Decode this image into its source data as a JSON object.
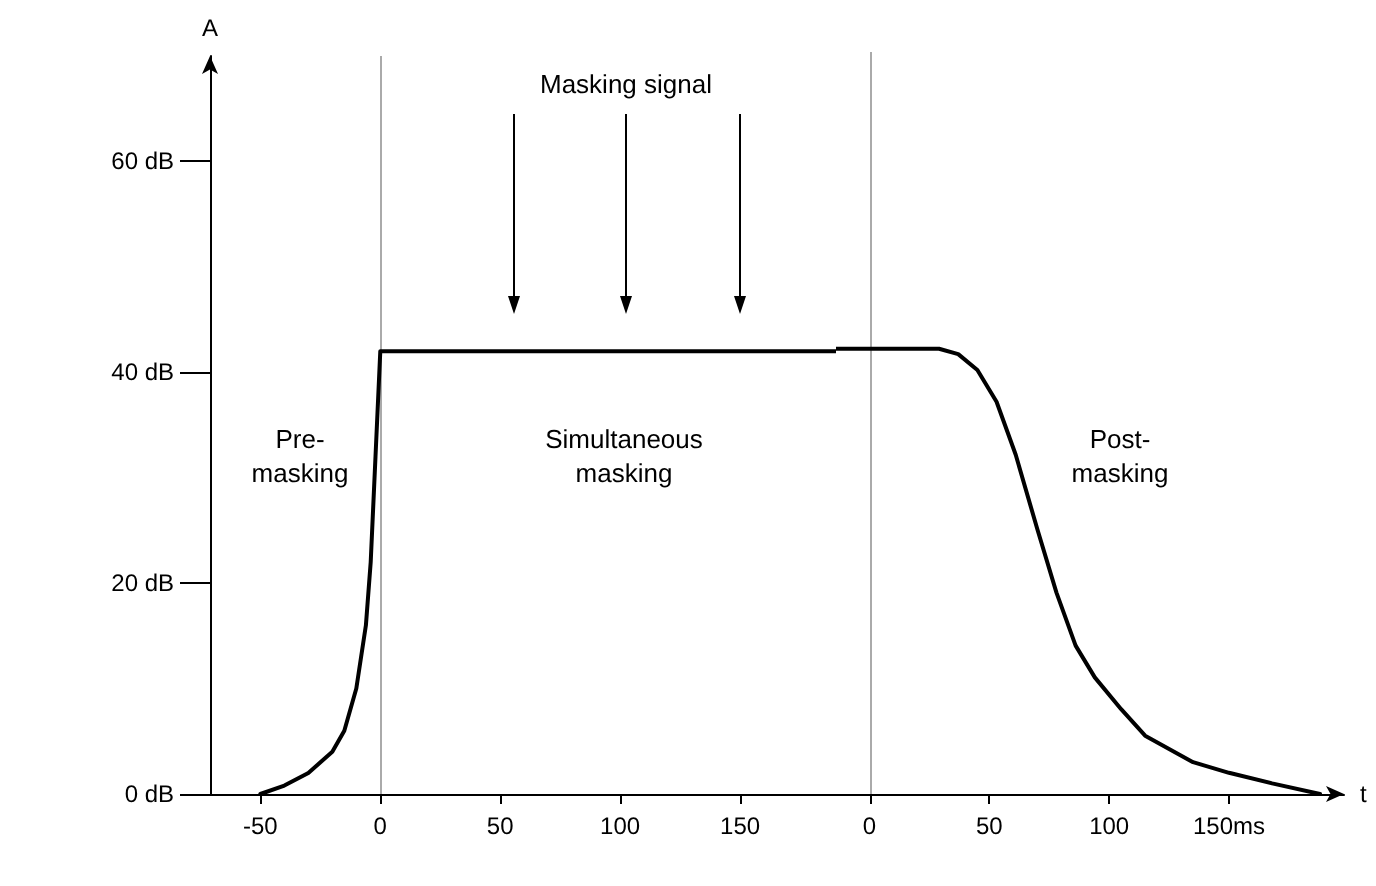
{
  "chart_data": [
    {
      "type": "line",
      "ylabel": "A",
      "x": [
        -50,
        -40,
        -30,
        -20,
        -15,
        -10,
        -6,
        -4,
        -2,
        0,
        190
      ],
      "values": [
        0,
        0.8,
        2,
        4,
        6,
        10,
        16,
        22,
        32,
        42,
        42
      ],
      "color": "#000000",
      "marker": "none",
      "line_style": "solid",
      "grid": false,
      "xlim": [
        -71,
        190
      ],
      "ylim": [
        0,
        70
      ],
      "xticks": [
        -50,
        0,
        50,
        100,
        150
      ],
      "yticks": [
        {
          "value": 0,
          "label": "0 dB"
        },
        {
          "value": 20,
          "label": "20 dB"
        },
        {
          "value": 40,
          "label": "40 dB"
        },
        {
          "value": 60,
          "label": "60 dB"
        }
      ],
      "ref_lines": [
        {
          "axis": "x",
          "value": 0,
          "color": "#aaaaaa"
        }
      ],
      "annotations": [
        "Pre-\nmasking",
        "Simultaneous\nmasking",
        "Masking signal"
      ]
    },
    {
      "type": "line",
      "xlabel": "t",
      "x": [
        -14,
        29,
        37,
        45,
        53,
        61,
        70,
        78,
        86,
        94,
        105,
        115,
        135,
        150,
        168,
        188
      ],
      "values": [
        42,
        42,
        41.5,
        40,
        37,
        32,
        25,
        19,
        14,
        11,
        8,
        5.5,
        3,
        2,
        1,
        0
      ],
      "color": "#000000",
      "marker": "none",
      "line_style": "solid",
      "grid": false,
      "tick_labels": "x",
      "xlim": [
        -14,
        198
      ],
      "ylim": [
        0,
        70
      ],
      "xticks": [
        0,
        50,
        100,
        {
          "value": 150,
          "label": "150ms"
        }
      ],
      "ref_lines": [
        {
          "axis": "x",
          "value": 0,
          "color": "#aaaaaa"
        }
      ],
      "annotations": [
        "Post-\nmasking"
      ]
    }
  ]
}
